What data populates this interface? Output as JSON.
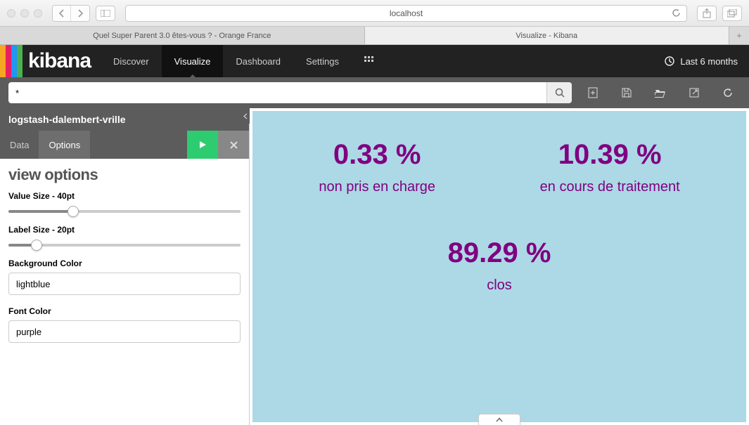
{
  "browser": {
    "url": "localhost",
    "tabs": [
      {
        "title": "Quel Super Parent 3.0 êtes-vous ? - Orange France",
        "active": false
      },
      {
        "title": "Visualize - Kibana",
        "active": true
      }
    ]
  },
  "kibana": {
    "logo_text": "kibana",
    "logo_stripes": [
      "#f5a623",
      "#e91e63",
      "#2196f3",
      "#4caf50"
    ],
    "nav": {
      "items": [
        {
          "label": "Discover",
          "active": false
        },
        {
          "label": "Visualize",
          "active": true
        },
        {
          "label": "Dashboard",
          "active": false
        },
        {
          "label": "Settings",
          "active": false
        }
      ],
      "time_label": "Last 6 months"
    },
    "search": {
      "value": "*",
      "placeholder": ""
    }
  },
  "left": {
    "index_name": "logstash-dalembert-vrille",
    "tabs": [
      {
        "label": "Data",
        "active": false
      },
      {
        "label": "Options",
        "active": true
      }
    ],
    "options": {
      "title": "view options",
      "value_size_label": "Value Size - 40pt",
      "value_size_pct": 28,
      "label_size_label": "Label Size - 20pt",
      "label_size_pct": 12,
      "bgcolor_label": "Background Color",
      "bgcolor_value": "lightblue",
      "fontcolor_label": "Font Color",
      "fontcolor_value": "purple"
    }
  },
  "viz": {
    "background_color": "#add8e6",
    "font_color": "#800080",
    "value_fontsize": 40,
    "label_fontsize": 20,
    "metrics": [
      {
        "value": "0.33 %",
        "label": "non pris en charge"
      },
      {
        "value": "10.39 %",
        "label": "en cours de traitement"
      },
      {
        "value": "89.29 %",
        "label": "clos"
      }
    ]
  }
}
